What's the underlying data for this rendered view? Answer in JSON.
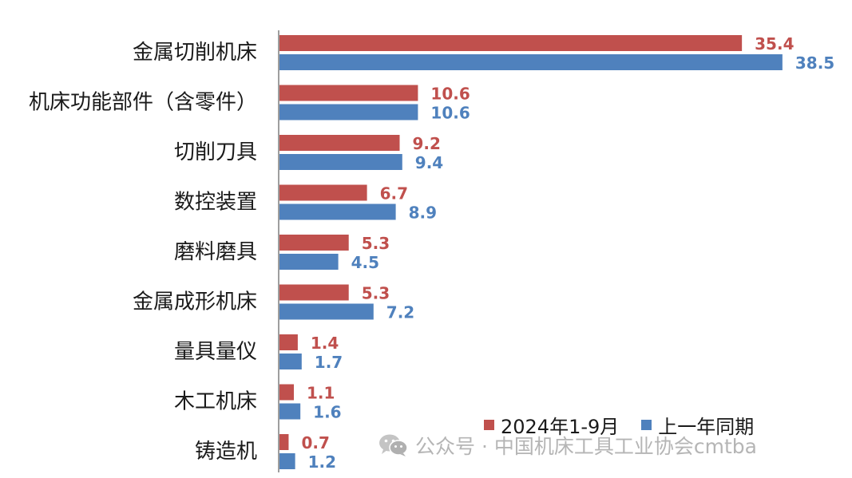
{
  "chart_data": {
    "type": "bar",
    "orientation": "horizontal",
    "categories": [
      "金属切削机床",
      "机床功能部件（含零件）",
      "切削刀具",
      "数控装置",
      "磨料磨具",
      "金属成形机床",
      "量具量仪",
      "木工机床",
      "铸造机"
    ],
    "series": [
      {
        "name": "2024年1-9月",
        "color": "#c0504d",
        "values": [
          35.4,
          10.6,
          9.2,
          6.7,
          5.3,
          5.3,
          1.4,
          1.1,
          0.7
        ]
      },
      {
        "name": "上一年同期",
        "color": "#4f81bd",
        "values": [
          38.5,
          10.6,
          9.4,
          8.9,
          4.5,
          7.2,
          1.7,
          1.6,
          1.2
        ]
      }
    ],
    "value_labels": true,
    "legend_position": "bottom-right",
    "grid": false
  },
  "legend": {
    "series_1": "2024年1-9月",
    "series_2": "上一年同期"
  },
  "watermark": {
    "text": "公众号 · 中国机床工具工业协会cmtba",
    "icon": "wechat-icon"
  }
}
